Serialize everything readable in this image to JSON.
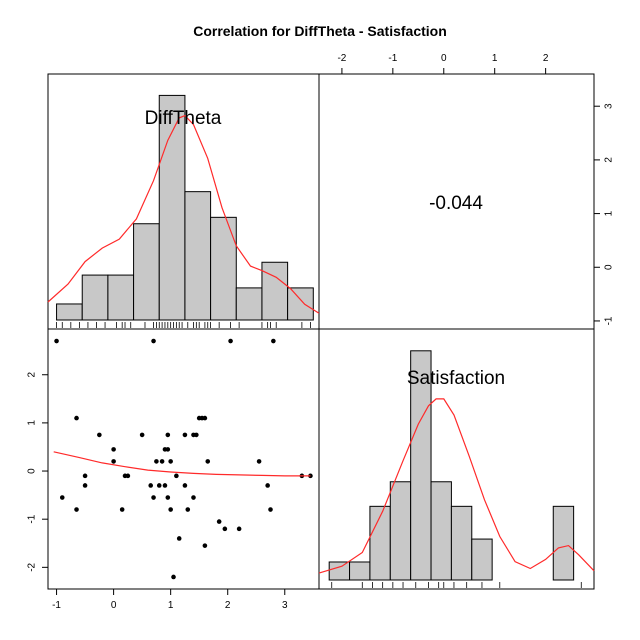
{
  "title": "Correlation  for DiffTheta - Satisfaction",
  "chart_data": {
    "type": "pairs",
    "variables": [
      "DiffTheta",
      "Satisfaction"
    ],
    "correlation_label": "-0.044",
    "axes": {
      "DiffTheta": {
        "range": [
          -1.15,
          3.6
        ],
        "ticks": [
          -1,
          0,
          1,
          2,
          3
        ]
      },
      "Satisfaction": {
        "range": [
          -2.45,
          2.95
        ],
        "ticks": [
          -2,
          -1,
          0,
          1,
          2
        ]
      }
    },
    "histograms": {
      "DiffTheta": {
        "bin_edges": [
          -1.0,
          -0.55,
          -0.1,
          0.35,
          0.8,
          1.25,
          1.7,
          2.15,
          2.6,
          3.05,
          3.5
        ],
        "relative_heights": [
          0.0714,
          0.2,
          0.2,
          0.4286,
          1.0,
          0.5714,
          0.4571,
          0.1429,
          0.2571,
          0.1429
        ],
        "density_curve": [
          [
            -1.15,
            0.08
          ],
          [
            -0.8,
            0.16
          ],
          [
            -0.5,
            0.26
          ],
          [
            -0.2,
            0.32
          ],
          [
            0.1,
            0.36
          ],
          [
            0.4,
            0.45
          ],
          [
            0.7,
            0.62
          ],
          [
            0.95,
            0.8
          ],
          [
            1.15,
            0.9
          ],
          [
            1.25,
            0.91
          ],
          [
            1.4,
            0.87
          ],
          [
            1.65,
            0.72
          ],
          [
            1.9,
            0.5
          ],
          [
            2.15,
            0.33
          ],
          [
            2.4,
            0.24
          ],
          [
            2.6,
            0.22
          ],
          [
            2.85,
            0.19
          ],
          [
            3.1,
            0.14
          ],
          [
            3.35,
            0.07
          ],
          [
            3.6,
            0.03
          ]
        ],
        "rug": [
          -1.0,
          -0.9,
          -0.75,
          -0.6,
          -0.45,
          -0.3,
          -0.15,
          0.05,
          0.15,
          0.2,
          0.3,
          0.55,
          0.7,
          0.75,
          0.8,
          0.85,
          0.9,
          0.95,
          1.0,
          1.05,
          1.1,
          1.15,
          1.2,
          1.3,
          1.4,
          1.45,
          1.5,
          1.6,
          1.65,
          1.7,
          1.85,
          2.05,
          2.2,
          2.6,
          2.7,
          2.75,
          2.85,
          3.3,
          3.45
        ]
      },
      "Satisfaction": {
        "bin_edges": [
          -2.25,
          -1.85,
          -1.45,
          -1.05,
          -0.65,
          -0.25,
          0.15,
          0.55,
          0.95,
          1.35,
          1.75,
          2.15,
          2.55
        ],
        "relative_heights": [
          0.0786,
          0.0786,
          0.3214,
          0.4286,
          1.0,
          0.4286,
          0.3214,
          0.1786,
          0.0,
          0.0,
          0.0,
          0.3214
        ],
        "density_curve": [
          [
            -2.45,
            0.03
          ],
          [
            -2.0,
            0.06
          ],
          [
            -1.6,
            0.12
          ],
          [
            -1.2,
            0.3
          ],
          [
            -0.8,
            0.52
          ],
          [
            -0.5,
            0.68
          ],
          [
            -0.3,
            0.76
          ],
          [
            -0.15,
            0.79
          ],
          [
            0.0,
            0.79
          ],
          [
            0.2,
            0.72
          ],
          [
            0.5,
            0.54
          ],
          [
            0.8,
            0.35
          ],
          [
            1.1,
            0.19
          ],
          [
            1.4,
            0.08
          ],
          [
            1.7,
            0.05
          ],
          [
            2.0,
            0.09
          ],
          [
            2.25,
            0.14
          ],
          [
            2.45,
            0.15
          ],
          [
            2.65,
            0.11
          ],
          [
            2.95,
            0.04
          ]
        ],
        "rug": [
          -2.2,
          -1.6,
          -1.4,
          -1.2,
          -1.0,
          -0.8,
          -0.55,
          -0.3,
          -0.1,
          0.0,
          0.2,
          0.45,
          0.75,
          1.1,
          2.7
        ]
      }
    },
    "scatter": {
      "x_variable": "DiffTheta",
      "y_variable": "Satisfaction",
      "points": [
        [
          -1.0,
          2.7
        ],
        [
          0.7,
          2.7
        ],
        [
          2.05,
          2.7
        ],
        [
          2.8,
          2.7
        ],
        [
          -0.65,
          1.1
        ],
        [
          1.5,
          1.1
        ],
        [
          1.55,
          1.1
        ],
        [
          1.6,
          1.1
        ],
        [
          -0.25,
          0.75
        ],
        [
          0.5,
          0.75
        ],
        [
          0.95,
          0.75
        ],
        [
          1.25,
          0.75
        ],
        [
          1.4,
          0.75
        ],
        [
          1.45,
          0.75
        ],
        [
          0.0,
          0.45
        ],
        [
          0.9,
          0.45
        ],
        [
          0.95,
          0.45
        ],
        [
          0.0,
          0.2
        ],
        [
          0.75,
          0.2
        ],
        [
          0.85,
          0.2
        ],
        [
          1.0,
          0.2
        ],
        [
          1.65,
          0.2
        ],
        [
          2.55,
          0.2
        ],
        [
          -0.5,
          -0.1
        ],
        [
          0.2,
          -0.1
        ],
        [
          0.25,
          -0.1
        ],
        [
          1.1,
          -0.1
        ],
        [
          3.3,
          -0.1
        ],
        [
          3.45,
          -0.1
        ],
        [
          -0.5,
          -0.3
        ],
        [
          0.65,
          -0.3
        ],
        [
          0.8,
          -0.3
        ],
        [
          0.9,
          -0.3
        ],
        [
          1.25,
          -0.3
        ],
        [
          2.7,
          -0.3
        ],
        [
          -0.9,
          -0.55
        ],
        [
          0.7,
          -0.55
        ],
        [
          0.95,
          -0.55
        ],
        [
          1.4,
          -0.55
        ],
        [
          -0.65,
          -0.8
        ],
        [
          0.15,
          -0.8
        ],
        [
          1.0,
          -0.8
        ],
        [
          1.3,
          -0.8
        ],
        [
          2.75,
          -0.8
        ],
        [
          1.85,
          -1.05
        ],
        [
          1.95,
          -1.2
        ],
        [
          2.2,
          -1.2
        ],
        [
          1.15,
          -1.4
        ],
        [
          1.6,
          -1.55
        ],
        [
          1.05,
          -2.2
        ]
      ],
      "loess": [
        [
          -1.05,
          0.4
        ],
        [
          -0.6,
          0.28
        ],
        [
          -0.2,
          0.17
        ],
        [
          0.2,
          0.09
        ],
        [
          0.6,
          0.02
        ],
        [
          1.0,
          -0.02
        ],
        [
          1.4,
          -0.05
        ],
        [
          1.8,
          -0.07
        ],
        [
          2.2,
          -0.08
        ],
        [
          2.6,
          -0.09
        ],
        [
          3.0,
          -0.1
        ],
        [
          3.45,
          -0.1
        ]
      ]
    }
  },
  "colors": {
    "bar_fill": "#c8c8c8",
    "bar_stroke": "#000000",
    "curve": "#ff2a2a",
    "points": "#000000"
  }
}
